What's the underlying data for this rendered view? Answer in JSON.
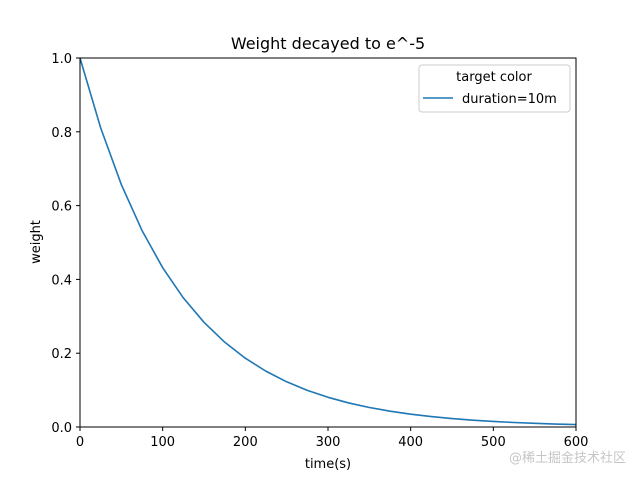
{
  "chart_data": {
    "type": "line",
    "title": "Weight decayed to e^-5",
    "xlabel": "time(s)",
    "ylabel": "weight",
    "xlim": [
      0,
      600
    ],
    "ylim": [
      0,
      1.0
    ],
    "x_ticks": [
      0,
      100,
      200,
      300,
      400,
      500,
      600
    ],
    "x_tick_labels": [
      "0",
      "100",
      "200",
      "300",
      "400",
      "500",
      "600"
    ],
    "y_ticks": [
      0,
      0.2,
      0.4,
      0.6,
      0.8,
      1.0
    ],
    "y_tick_labels": [
      "0.0",
      "0.2",
      "0.4",
      "0.6",
      "0.8",
      "1.0"
    ],
    "grid": false,
    "legend": {
      "title": "target color",
      "placement": "top-right"
    },
    "series": [
      {
        "name": "duration=10m",
        "color": "#1f77b4",
        "x": [
          0,
          25,
          50,
          75,
          100,
          125,
          150,
          175,
          200,
          225,
          250,
          275,
          300,
          325,
          350,
          375,
          400,
          425,
          450,
          475,
          500,
          525,
          550,
          575,
          600
        ],
        "y": [
          1.0,
          0.8106,
          0.657,
          0.5326,
          0.4317,
          0.3499,
          0.2837,
          0.2299,
          0.1864,
          0.1511,
          0.1225,
          0.0993,
          0.0805,
          0.0652,
          0.0529,
          0.0429,
          0.0347,
          0.0282,
          0.0228,
          0.0185,
          0.015,
          0.0122,
          0.0099,
          0.008,
          0.0067
        ]
      }
    ]
  },
  "watermark": "@稀土掘金技术社区"
}
